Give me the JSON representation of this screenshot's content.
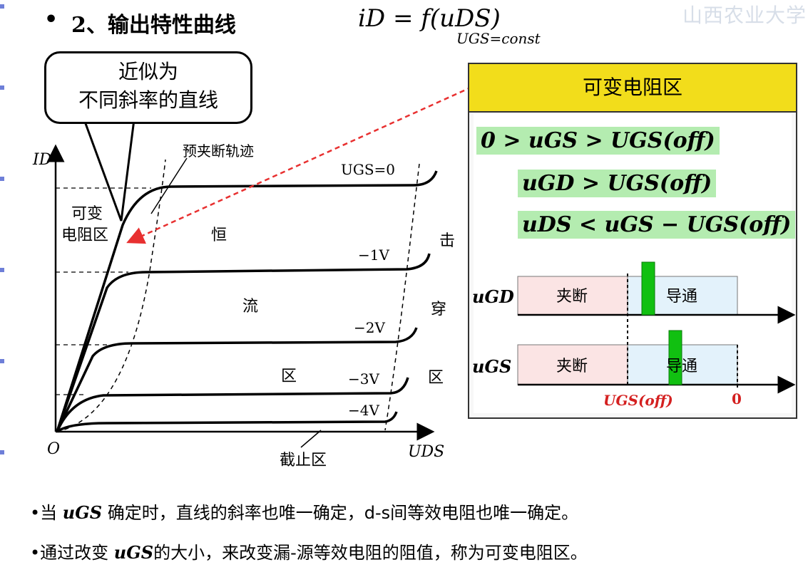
{
  "watermark": "山西农业大学",
  "heading": {
    "bullet": "•",
    "title": "2、输出特性曲线",
    "formula": "iD = f(uDS)",
    "condition": "UGS=const"
  },
  "bubble": {
    "line1": "近似为",
    "line2": "不同斜率的直线"
  },
  "plot": {
    "y_axis_label": "ID",
    "x_axis_label": "UDS",
    "origin_label": "O",
    "pinchoff_trace_label": "预夹断轨迹",
    "variable_region_label_1": "可变",
    "variable_region_label_2": "电阻区",
    "constant_region_labels": [
      "恒",
      "流",
      "区"
    ],
    "breakdown_region_labels": [
      "击",
      "穿",
      "区"
    ],
    "cutoff_label": "截止区",
    "curve_labels": [
      "UGS=0",
      "−1V",
      "−2V",
      "−3V",
      "−4V"
    ]
  },
  "panel": {
    "title": "可变电阻区",
    "eq1": "0 > uGS > UGS(off)",
    "eq2": "uGD > UGS(off)",
    "eq3": "uDS < uGS − UGS(off)",
    "bar_gd_label": "uGD",
    "bar_gs_label": "uGS",
    "cutoff_text": "夹断",
    "conduct_text": "导通",
    "axis_off_label": "UGS(off)",
    "axis_zero_label": "0"
  },
  "footer": {
    "line1_a": "•当 ",
    "line1_var": "uGS",
    "line1_b": " 确定时，直线的斜率也唯一确定，d-s间等效电阻也唯一确定。",
    "line2_a": "•通过改变 ",
    "line2_var": "uGS",
    "line2_b": "的大小，来改变漏-源等效电阻的阻值，称为可变电阻区。"
  },
  "colors": {
    "title_bar": "#f2dd1b",
    "eq_highlight": "#b4ecb0",
    "cutoff_fill": "#fbe4e4",
    "conduct_fill": "#e3f2fb",
    "marker": "#11c011",
    "arrow": "#e83030",
    "red_text": "#d42020"
  }
}
